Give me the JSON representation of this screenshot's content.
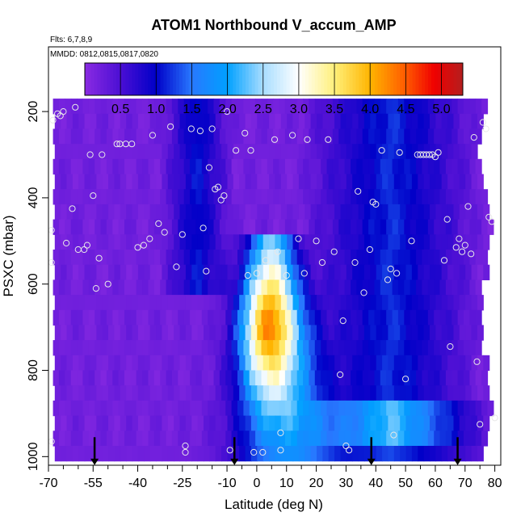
{
  "chart_data": {
    "type": "heatmap",
    "title": "ATOM1 Northbound V_accum_AMP",
    "subtitle_flights": "Flts: 6,7,8,9",
    "subtitle_dates": "MMDD: 0812,0815,0817,0820",
    "xlabel": "Latitude (deg N)",
    "ylabel": "PSXC (mbar)",
    "xlim": [
      -70,
      82
    ],
    "ylim": [
      1020,
      50
    ],
    "y_reversed": true,
    "x_ticks": [
      -70,
      -55,
      -40,
      -25,
      -10,
      0,
      10,
      20,
      30,
      40,
      50,
      60,
      70,
      80
    ],
    "x_tick_labels": [
      "-70",
      "-55",
      "-40",
      "-25",
      "-10",
      "0",
      "10",
      "20",
      "30",
      "40",
      "50",
      "60",
      "70",
      "80"
    ],
    "x_minor_ticks": [
      -65,
      -60,
      -50,
      -45,
      -35,
      -30,
      -20,
      -15,
      -5,
      5,
      15,
      25,
      35,
      45,
      55,
      65,
      75
    ],
    "y_ticks": [
      200,
      400,
      600,
      800,
      1000
    ],
    "y_tick_labels": [
      "200",
      "400",
      "600",
      "800",
      "1000"
    ],
    "colorbar": {
      "range": [
        0,
        5.3
      ],
      "ticks": [
        0.5,
        1.0,
        1.5,
        2.0,
        2.5,
        3.0,
        3.5,
        4.0,
        4.5,
        5.0
      ],
      "tick_labels": [
        "0.5",
        "1.0",
        "1.5",
        "2.0",
        "2.5",
        "3.0",
        "3.5",
        "4.0",
        "4.5",
        "5.0"
      ],
      "stops": [
        {
          "v": 0.0,
          "color": "#8a2be2"
        },
        {
          "v": 0.5,
          "color": "#4b0fd4"
        },
        {
          "v": 1.0,
          "color": "#0000c8"
        },
        {
          "v": 1.5,
          "color": "#2878ff"
        },
        {
          "v": 2.0,
          "color": "#00a0ff"
        },
        {
          "v": 2.5,
          "color": "#a8ddff"
        },
        {
          "v": 3.0,
          "color": "#ffffff"
        },
        {
          "v": 3.5,
          "color": "#fff07a"
        },
        {
          "v": 4.0,
          "color": "#ffb400"
        },
        {
          "v": 4.5,
          "color": "#ff5a00"
        },
        {
          "v": 4.9,
          "color": "#f00000"
        },
        {
          "v": 5.3,
          "color": "#b41e1e"
        }
      ]
    },
    "field_extent": {
      "pressure_top": 170,
      "pressure_bottom": 1010
    },
    "background_value": 0.2,
    "features": [
      {
        "name": "tropical convective core",
        "lat_center": 5,
        "lat_halfwidth": 11,
        "p_top": 470,
        "p_bottom": 1000,
        "peak_value": 4.6,
        "peak_lat": 2,
        "peak_p": 700
      },
      {
        "name": "subtropical band south",
        "lat_center": -20,
        "lat_halfwidth": 10,
        "p_top": 200,
        "p_bottom": 600,
        "peak_value": 0.9
      },
      {
        "name": "northern mid-latitude band",
        "lat_center": 45,
        "lat_halfwidth": 25,
        "p_top": 180,
        "p_bottom": 950,
        "peak_value": 1.0
      },
      {
        "name": "boundary layer north",
        "lat_center": 45,
        "lat_halfwidth": 30,
        "p_top": 900,
        "p_bottom": 1010,
        "peak_value": 1.1
      }
    ],
    "sample_points": [
      [
        -68.5,
        220
      ],
      [
        -67,
        205
      ],
      [
        -66,
        210
      ],
      [
        -65,
        200
      ],
      [
        -61,
        190
      ],
      [
        -69,
        475
      ],
      [
        -69,
        550
      ],
      [
        -69,
        965
      ],
      [
        -64,
        505
      ],
      [
        -62,
        425
      ],
      [
        -60,
        520
      ],
      [
        -58,
        520
      ],
      [
        -57,
        510
      ],
      [
        -56,
        300
      ],
      [
        -55,
        395
      ],
      [
        -54,
        610
      ],
      [
        -53,
        540
      ],
      [
        -52,
        300
      ],
      [
        -50,
        600
      ],
      [
        -47,
        275
      ],
      [
        -46,
        275
      ],
      [
        -44,
        275
      ],
      [
        -42,
        275
      ],
      [
        -40,
        515
      ],
      [
        -38,
        510
      ],
      [
        -36,
        495
      ],
      [
        -35,
        255
      ],
      [
        -33,
        460
      ],
      [
        -31,
        480
      ],
      [
        -29,
        235
      ],
      [
        -27,
        560
      ],
      [
        -25,
        485
      ],
      [
        -24,
        975
      ],
      [
        -24,
        990
      ],
      [
        -22,
        240
      ],
      [
        -19,
        245
      ],
      [
        -18,
        470
      ],
      [
        -17,
        570
      ],
      [
        -16,
        330
      ],
      [
        -15,
        240
      ],
      [
        -14,
        380
      ],
      [
        -13,
        375
      ],
      [
        -12,
        405
      ],
      [
        -11,
        395
      ],
      [
        -10,
        200
      ],
      [
        -9,
        985
      ],
      [
        -7,
        290
      ],
      [
        -4,
        250
      ],
      [
        -3,
        580
      ],
      [
        -2,
        290
      ],
      [
        -1,
        990
      ],
      [
        0,
        575
      ],
      [
        2,
        990
      ],
      [
        3,
        545
      ],
      [
        6,
        265
      ],
      [
        7,
        525
      ],
      [
        8,
        945
      ],
      [
        8,
        985
      ],
      [
        10,
        580
      ],
      [
        12,
        255
      ],
      [
        14,
        495
      ],
      [
        16,
        575
      ],
      [
        17,
        265
      ],
      [
        20,
        500
      ],
      [
        22,
        550
      ],
      [
        24,
        265
      ],
      [
        26,
        525
      ],
      [
        28,
        810
      ],
      [
        29,
        685
      ],
      [
        30,
        975
      ],
      [
        31,
        985
      ],
      [
        33,
        550
      ],
      [
        34,
        385
      ],
      [
        36,
        620
      ],
      [
        38,
        520
      ],
      [
        39,
        410
      ],
      [
        40,
        415
      ],
      [
        42,
        290
      ],
      [
        44,
        590
      ],
      [
        45,
        565
      ],
      [
        46,
        950
      ],
      [
        47,
        575
      ],
      [
        48,
        295
      ],
      [
        50,
        820
      ],
      [
        52,
        500
      ],
      [
        54,
        300
      ],
      [
        55,
        300
      ],
      [
        56,
        300
      ],
      [
        57,
        300
      ],
      [
        58,
        300
      ],
      [
        59,
        300
      ],
      [
        60,
        305
      ],
      [
        61,
        295
      ],
      [
        63,
        545
      ],
      [
        64,
        450
      ],
      [
        65,
        745
      ],
      [
        67,
        515
      ],
      [
        68,
        495
      ],
      [
        69,
        525
      ],
      [
        70,
        510
      ],
      [
        71,
        420
      ],
      [
        72,
        530
      ],
      [
        73,
        260
      ],
      [
        74,
        780
      ],
      [
        75,
        925
      ],
      [
        76,
        225
      ],
      [
        77,
        240
      ],
      [
        78,
        445
      ],
      [
        79,
        455
      ],
      [
        80,
        910
      ]
    ],
    "arrows_lat": [
      -54.5,
      -7.5,
      38.5,
      67.5
    ],
    "arrows_p_from": 955,
    "arrows_p_to": 1018
  }
}
